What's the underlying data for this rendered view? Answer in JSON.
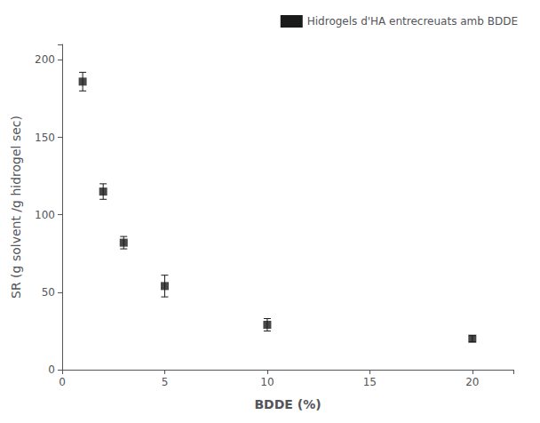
{
  "chart_data": {
    "type": "scatter",
    "xlabel": "BDDE (%)",
    "ylabel": "SR (g solvent /g hidrogel sec)",
    "x": [
      1,
      2,
      3,
      5,
      10,
      20
    ],
    "series": [
      {
        "name": "Hidrogels d'HA entrecreuats amb BDDE",
        "color": "#1a1a1a",
        "marker": "square",
        "values": [
          186,
          115,
          82,
          54,
          29,
          20
        ],
        "yerr": [
          6,
          5,
          4,
          7,
          4,
          2
        ]
      }
    ],
    "xlim": [
      0,
      22
    ],
    "ylim": [
      0,
      210
    ],
    "xticks": [
      0,
      5,
      10,
      15,
      20
    ],
    "yticks": [
      0,
      50,
      100,
      150,
      200
    ],
    "grid": false,
    "legend": "upper right"
  }
}
